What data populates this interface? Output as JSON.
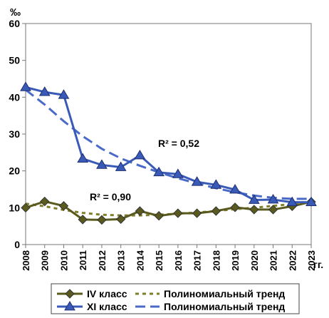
{
  "chart_data": {
    "type": "line",
    "yunit": "‰",
    "xunit": "гг.",
    "ylim": [
      0,
      60
    ],
    "yticks": [
      "0",
      "10",
      "20",
      "30",
      "40",
      "50",
      "60"
    ],
    "grid": false,
    "categories": [
      "2008",
      "2009",
      "2010",
      "2011",
      "2012",
      "2013",
      "2014",
      "2015",
      "2016",
      "2017",
      "2018",
      "2019",
      "2020",
      "2021",
      "2022",
      "2023"
    ],
    "series": [
      {
        "name": "IV класс",
        "color": "#5a5a1e",
        "marker": "diamond",
        "values": [
          10.0,
          11.7,
          10.5,
          6.8,
          6.7,
          6.9,
          9.1,
          7.8,
          8.5,
          8.5,
          9.1,
          10.1,
          9.5,
          9.5,
          10.4,
          11.6
        ],
        "trend": {
          "name": "Полиномиальный тренд",
          "color": "#7f7f2a",
          "values": [
            11.1,
            10.4,
            9.4,
            8.6,
            8.1,
            7.9,
            7.9,
            8.1,
            8.4,
            8.7,
            9.1,
            9.6,
            10.0,
            10.5,
            11.0,
            11.6
          ]
        },
        "r2_label": "R² = 0,90"
      },
      {
        "name": "XI класс",
        "color": "#3a5ab8",
        "marker": "triangle",
        "values": [
          42.7,
          41.4,
          40.6,
          23.3,
          21.6,
          21.0,
          24.2,
          19.6,
          19.1,
          17.0,
          16.2,
          14.9,
          12.1,
          12.2,
          11.5,
          11.5
        ],
        "trend": {
          "name": "Полиномиальный тренд",
          "color": "#4a6ac8",
          "values": [
            42.0,
            38.0,
            33.5,
            29.4,
            26.0,
            23.4,
            21.4,
            19.6,
            18.0,
            16.6,
            15.3,
            14.2,
            13.3,
            12.7,
            12.4,
            12.4
          ]
        },
        "r2_label": "R² = 0,52"
      }
    ],
    "legend_position": "bottom"
  }
}
